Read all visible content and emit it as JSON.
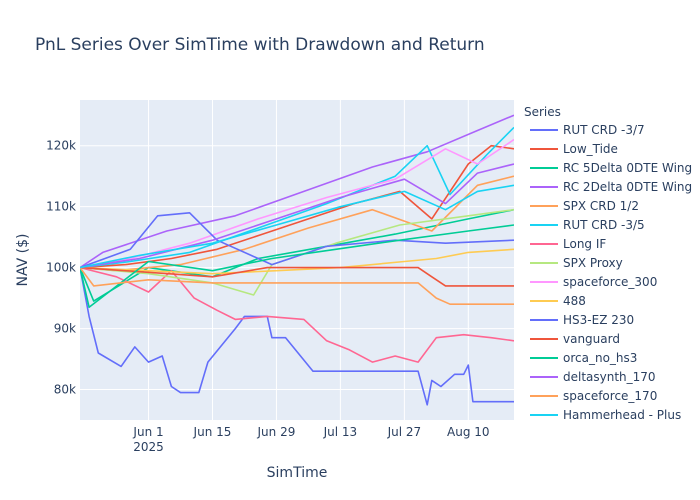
{
  "chart_data": {
    "type": "line",
    "title": "PnL Series Over SimTime with Drawdown and Return",
    "xlabel": "SimTime",
    "ylabel": "NAV ($)",
    "legend_title": "Series",
    "legend_position": "right",
    "x_range": [
      "2025-05-17",
      "2025-08-20"
    ],
    "y_range": [
      75000,
      127500
    ],
    "x_ticks": [
      {
        "date": "2025-06-01",
        "label": "Jun 1",
        "sublabel": "2025"
      },
      {
        "date": "2025-06-15",
        "label": "Jun 15",
        "sublabel": ""
      },
      {
        "date": "2025-06-29",
        "label": "Jun 29",
        "sublabel": ""
      },
      {
        "date": "2025-07-13",
        "label": "Jul 13",
        "sublabel": ""
      },
      {
        "date": "2025-07-27",
        "label": "Jul 27",
        "sublabel": ""
      },
      {
        "date": "2025-08-10",
        "label": "Aug 10",
        "sublabel": ""
      }
    ],
    "y_ticks": [
      {
        "value": 80000,
        "label": "80k"
      },
      {
        "value": 90000,
        "label": "90k"
      },
      {
        "value": 100000,
        "label": "100k"
      },
      {
        "value": 110000,
        "label": "110k"
      },
      {
        "value": 120000,
        "label": "120k"
      }
    ],
    "grid": true,
    "series": [
      {
        "name": "RUT CRD -3/7",
        "color": "#636efa",
        "points": [
          [
            "2025-05-17",
            100000
          ],
          [
            "2025-05-19",
            92000
          ],
          [
            "2025-05-21",
            86000
          ],
          [
            "2025-05-26",
            83800
          ],
          [
            "2025-05-29",
            87000
          ],
          [
            "2025-06-01",
            84500
          ],
          [
            "2025-06-04",
            85500
          ],
          [
            "2025-06-06",
            80500
          ],
          [
            "2025-06-08",
            79500
          ],
          [
            "2025-06-12",
            79500
          ],
          [
            "2025-06-14",
            84500
          ],
          [
            "2025-06-20",
            90000
          ],
          [
            "2025-06-22",
            92000
          ],
          [
            "2025-06-27",
            92000
          ],
          [
            "2025-06-28",
            88500
          ],
          [
            "2025-07-01",
            88500
          ],
          [
            "2025-07-07",
            83000
          ],
          [
            "2025-07-30",
            83000
          ],
          [
            "2025-08-01",
            77500
          ],
          [
            "2025-08-02",
            81500
          ],
          [
            "2025-08-04",
            80500
          ],
          [
            "2025-08-07",
            82500
          ],
          [
            "2025-08-09",
            82500
          ],
          [
            "2025-08-10",
            84000
          ],
          [
            "2025-08-11",
            78000
          ],
          [
            "2025-08-20",
            78000
          ]
        ]
      },
      {
        "name": "Low_Tide",
        "color": "#ef553b",
        "points": [
          [
            "2025-05-17",
            100000
          ],
          [
            "2025-05-27",
            100500
          ],
          [
            "2025-06-06",
            101500
          ],
          [
            "2025-06-16",
            103000
          ],
          [
            "2025-06-26",
            105500
          ],
          [
            "2025-07-06",
            108000
          ],
          [
            "2025-07-16",
            110500
          ],
          [
            "2025-07-26",
            112500
          ],
          [
            "2025-08-02",
            108000
          ],
          [
            "2025-08-10",
            117000
          ],
          [
            "2025-08-15",
            120000
          ],
          [
            "2025-08-20",
            119500
          ]
        ]
      },
      {
        "name": "RC 5Delta 0DTE Wing",
        "color": "#00cc96",
        "points": [
          [
            "2025-05-17",
            100000
          ],
          [
            "2025-05-20",
            94500
          ],
          [
            "2025-06-01",
            100000
          ],
          [
            "2025-06-15",
            98500
          ],
          [
            "2025-06-25",
            101500
          ],
          [
            "2025-07-10",
            103500
          ],
          [
            "2025-07-25",
            105500
          ],
          [
            "2025-08-10",
            108000
          ],
          [
            "2025-08-20",
            109500
          ]
        ]
      },
      {
        "name": "RC 2Delta 0DTE Wing",
        "color": "#ab63fa",
        "points": [
          [
            "2025-05-17",
            100000
          ],
          [
            "2025-05-22",
            102500
          ],
          [
            "2025-06-05",
            106000
          ],
          [
            "2025-06-20",
            108500
          ],
          [
            "2025-07-05",
            112500
          ],
          [
            "2025-07-20",
            116500
          ],
          [
            "2025-08-01",
            119000
          ],
          [
            "2025-08-12",
            122500
          ],
          [
            "2025-08-20",
            125000
          ]
        ]
      },
      {
        "name": "SPX CRD 1/2",
        "color": "#ffa15a",
        "points": [
          [
            "2025-05-17",
            100000
          ],
          [
            "2025-05-25",
            99500
          ],
          [
            "2025-06-08",
            100500
          ],
          [
            "2025-06-22",
            103000
          ],
          [
            "2025-07-06",
            106500
          ],
          [
            "2025-07-20",
            109500
          ],
          [
            "2025-08-02",
            106000
          ],
          [
            "2025-08-12",
            113500
          ],
          [
            "2025-08-20",
            115000
          ]
        ]
      },
      {
        "name": "RUT CRD -3/5",
        "color": "#19d3f3",
        "points": [
          [
            "2025-05-17",
            100000
          ],
          [
            "2025-05-28",
            101000
          ],
          [
            "2025-06-10",
            102500
          ],
          [
            "2025-06-25",
            106500
          ],
          [
            "2025-07-10",
            110500
          ],
          [
            "2025-07-25",
            115000
          ],
          [
            "2025-08-01",
            120000
          ],
          [
            "2025-08-06",
            112000
          ],
          [
            "2025-08-14",
            118500
          ],
          [
            "2025-08-20",
            123000
          ]
        ]
      },
      {
        "name": "Long IF",
        "color": "#ff6692",
        "points": [
          [
            "2025-05-17",
            100000
          ],
          [
            "2025-05-25",
            98500
          ],
          [
            "2025-06-01",
            96000
          ],
          [
            "2025-06-06",
            99500
          ],
          [
            "2025-06-11",
            95000
          ],
          [
            "2025-06-16",
            93000
          ],
          [
            "2025-06-20",
            91500
          ],
          [
            "2025-06-27",
            92000
          ],
          [
            "2025-07-05",
            91500
          ],
          [
            "2025-07-10",
            88000
          ],
          [
            "2025-07-15",
            86500
          ],
          [
            "2025-07-20",
            84500
          ],
          [
            "2025-07-25",
            85500
          ],
          [
            "2025-07-30",
            84500
          ],
          [
            "2025-08-03",
            88500
          ],
          [
            "2025-08-09",
            89000
          ],
          [
            "2025-08-15",
            88500
          ],
          [
            "2025-08-20",
            88000
          ]
        ]
      },
      {
        "name": "SPX Proxy",
        "color": "#b6e880",
        "points": [
          [
            "2025-05-17",
            100000
          ],
          [
            "2025-06-01",
            99000
          ],
          [
            "2025-06-15",
            97500
          ],
          [
            "2025-06-24",
            95500
          ],
          [
            "2025-06-28",
            100500
          ],
          [
            "2025-07-12",
            104000
          ],
          [
            "2025-07-26",
            107000
          ],
          [
            "2025-08-10",
            108500
          ],
          [
            "2025-08-20",
            109500
          ]
        ]
      },
      {
        "name": "spaceforce_300",
        "color": "#ff97ff",
        "points": [
          [
            "2025-05-17",
            100000
          ],
          [
            "2025-05-28",
            101500
          ],
          [
            "2025-06-10",
            104000
          ],
          [
            "2025-06-25",
            108000
          ],
          [
            "2025-07-10",
            111500
          ],
          [
            "2025-07-25",
            114500
          ],
          [
            "2025-08-05",
            119500
          ],
          [
            "2025-08-12",
            117000
          ],
          [
            "2025-08-20",
            121000
          ]
        ]
      },
      {
        "name": "488",
        "color": "#fecb52",
        "points": [
          [
            "2025-05-17",
            100000
          ],
          [
            "2025-06-01",
            99500
          ],
          [
            "2025-06-15",
            99000
          ],
          [
            "2025-06-29",
            99500
          ],
          [
            "2025-07-13",
            100000
          ],
          [
            "2025-07-27",
            101000
          ],
          [
            "2025-08-03",
            101500
          ],
          [
            "2025-08-10",
            102500
          ],
          [
            "2025-08-20",
            103000
          ]
        ]
      },
      {
        "name": "HS3-EZ 230",
        "color": "#636efa",
        "points": [
          [
            "2025-05-17",
            100000
          ],
          [
            "2025-05-28",
            103000
          ],
          [
            "2025-06-03",
            108500
          ],
          [
            "2025-06-10",
            109000
          ],
          [
            "2025-06-16",
            104500
          ],
          [
            "2025-06-28",
            100500
          ],
          [
            "2025-07-10",
            103500
          ],
          [
            "2025-07-25",
            104500
          ],
          [
            "2025-08-05",
            104000
          ],
          [
            "2025-08-20",
            104500
          ]
        ]
      },
      {
        "name": "vanguard",
        "color": "#ef553b",
        "points": [
          [
            "2025-05-17",
            100000
          ],
          [
            "2025-06-15",
            98500
          ],
          [
            "2025-06-27",
            100000
          ],
          [
            "2025-07-30",
            100000
          ],
          [
            "2025-08-02",
            98500
          ],
          [
            "2025-08-05",
            97000
          ],
          [
            "2025-08-08",
            97000
          ],
          [
            "2025-08-20",
            97000
          ]
        ]
      },
      {
        "name": "orca_no_hs3",
        "color": "#00cc96",
        "points": [
          [
            "2025-05-17",
            100000
          ],
          [
            "2025-05-19",
            93500
          ],
          [
            "2025-06-01",
            101000
          ],
          [
            "2025-06-15",
            99500
          ],
          [
            "2025-06-28",
            101500
          ],
          [
            "2025-07-12",
            103000
          ],
          [
            "2025-07-26",
            104500
          ],
          [
            "2025-08-10",
            106000
          ],
          [
            "2025-08-20",
            107000
          ]
        ]
      },
      {
        "name": "deltasynth_170",
        "color": "#ab63fa",
        "points": [
          [
            "2025-05-17",
            100000
          ],
          [
            "2025-05-30",
            101500
          ],
          [
            "2025-06-15",
            104500
          ],
          [
            "2025-06-29",
            108000
          ],
          [
            "2025-07-13",
            111500
          ],
          [
            "2025-07-27",
            114500
          ],
          [
            "2025-08-05",
            110500
          ],
          [
            "2025-08-12",
            115500
          ],
          [
            "2025-08-20",
            117000
          ]
        ]
      },
      {
        "name": "spaceforce_170",
        "color": "#ffa15a",
        "points": [
          [
            "2025-05-17",
            100000
          ],
          [
            "2025-05-20",
            97000
          ],
          [
            "2025-06-01",
            98000
          ],
          [
            "2025-06-15",
            97500
          ],
          [
            "2025-06-29",
            97500
          ],
          [
            "2025-07-13",
            97500
          ],
          [
            "2025-07-30",
            97500
          ],
          [
            "2025-08-03",
            95000
          ],
          [
            "2025-08-06",
            94000
          ],
          [
            "2025-08-12",
            94000
          ],
          [
            "2025-08-20",
            94000
          ]
        ]
      },
      {
        "name": "Hammerhead - Plus",
        "color": "#19d3f3",
        "points": [
          [
            "2025-05-17",
            100000
          ],
          [
            "2025-05-30",
            102000
          ],
          [
            "2025-06-15",
            104000
          ],
          [
            "2025-06-29",
            107000
          ],
          [
            "2025-07-13",
            110000
          ],
          [
            "2025-07-27",
            112500
          ],
          [
            "2025-08-05",
            109500
          ],
          [
            "2025-08-12",
            112500
          ],
          [
            "2025-08-20",
            113500
          ]
        ]
      }
    ]
  }
}
